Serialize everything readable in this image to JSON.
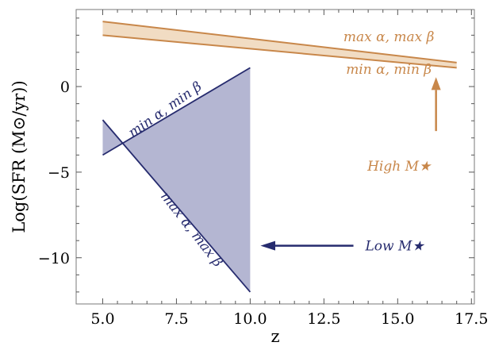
{
  "chart_data": {
    "type": "area",
    "xlabel": "z",
    "ylabel": "Log(SFR (M⊙/yr))",
    "xlim": [
      4.1,
      17.6
    ],
    "ylim": [
      -12.7,
      4.5
    ],
    "xticks": [
      5.0,
      7.5,
      10.0,
      12.5,
      15.0,
      17.5
    ],
    "xtick_labels": [
      "5.0",
      "7.5",
      "10.0",
      "12.5",
      "15.0",
      "17.5"
    ],
    "yticks": [
      0,
      -5,
      -10
    ],
    "ytick_labels": [
      "0",
      "−5",
      "−10"
    ],
    "grid": false,
    "colors": {
      "high": "#c8874a",
      "high_fill": "#f1dcc3",
      "low": "#262b6e",
      "low_fill": "#b4b6d2"
    },
    "series": [
      {
        "group": "high",
        "label": "max α, max β",
        "x": [
          5.0,
          17.0
        ],
        "y": [
          3.8,
          1.4
        ]
      },
      {
        "group": "high",
        "label": "min α, min β",
        "x": [
          5.0,
          17.0
        ],
        "y": [
          3.0,
          1.1
        ]
      },
      {
        "group": "low",
        "label": "min α, min β",
        "x": [
          5.0,
          10.0
        ],
        "y": [
          -4.0,
          1.1
        ]
      },
      {
        "group": "low",
        "label": "max α, max β",
        "x": [
          5.0,
          10.0
        ],
        "y": [
          -1.95,
          -12.0
        ]
      }
    ],
    "annotations": [
      {
        "group": "high",
        "text": "High M★",
        "points_to": "up"
      },
      {
        "group": "low",
        "text": "Low M★",
        "points_to": "left"
      }
    ]
  }
}
